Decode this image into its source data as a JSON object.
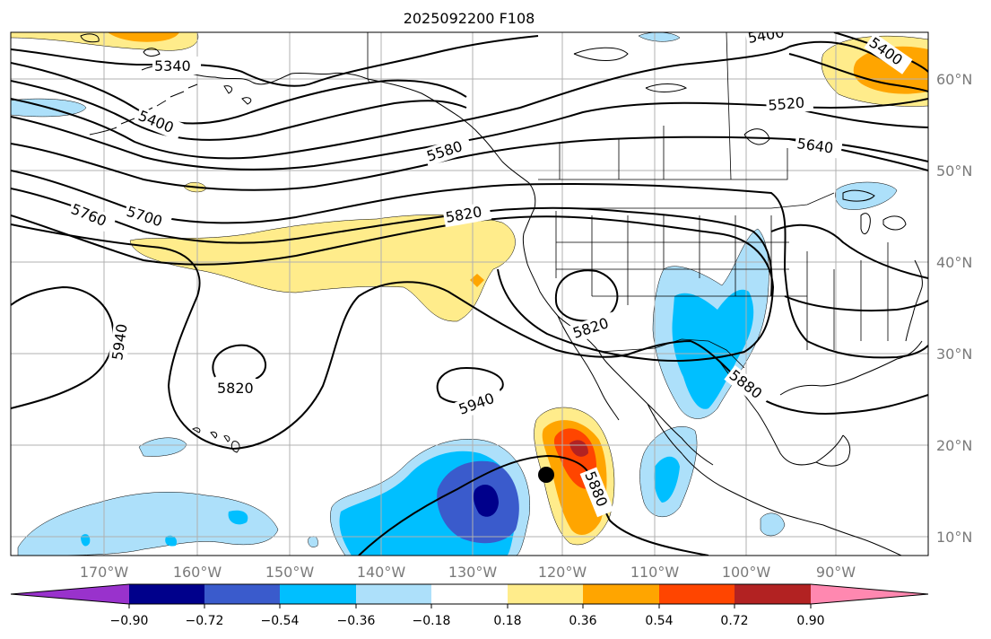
{
  "title": "2025092200 F108",
  "longitude_labels": [
    "170°W",
    "160°W",
    "150°W",
    "140°W",
    "130°W",
    "120°W",
    "110°W",
    "100°W",
    "90°W"
  ],
  "latitude_labels": [
    "60°N",
    "50°N",
    "40°N",
    "30°N",
    "20°N",
    "10°N"
  ],
  "colorbar": {
    "tick_labels": [
      "−0.90",
      "−0.72",
      "−0.54",
      "−0.36",
      "−0.18",
      "0.18",
      "0.36",
      "0.54",
      "0.72",
      "0.90"
    ],
    "colors": [
      "#9932cc",
      "#00008b",
      "#3a5bcc",
      "#00bfff",
      "#ade0fa",
      "#ffffff",
      "#ffec8b",
      "#ffa500",
      "#ff4500",
      "#b22222",
      "#ff88b0"
    ]
  },
  "height_contour_labels": [
    {
      "id": "5340",
      "text": "5340"
    },
    {
      "id": "5400-a",
      "text": "5400"
    },
    {
      "id": "5400-b",
      "text": "5400"
    },
    {
      "id": "5400-c",
      "text": "5400"
    },
    {
      "id": "5520",
      "text": "5520"
    },
    {
      "id": "5580",
      "text": "5580"
    },
    {
      "id": "5640",
      "text": "5640"
    },
    {
      "id": "5700",
      "text": "5700"
    },
    {
      "id": "5760",
      "text": "5760"
    },
    {
      "id": "5820-a",
      "text": "5820"
    },
    {
      "id": "5820-b",
      "text": "5820"
    },
    {
      "id": "5820-c",
      "text": "5820"
    },
    {
      "id": "5880-a",
      "text": "5880"
    },
    {
      "id": "5880-b",
      "text": "5880"
    },
    {
      "id": "5940-a",
      "text": "5940"
    },
    {
      "id": "5940-b",
      "text": "5940"
    }
  ],
  "markers": [
    {
      "id": "storm-center",
      "type": "black-dot"
    }
  ]
}
